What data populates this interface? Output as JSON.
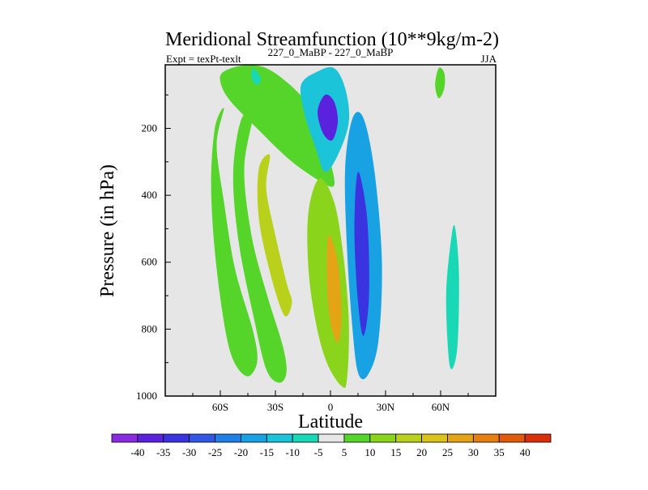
{
  "chart_data": {
    "type": "heatmap",
    "plot_style": "filled-contour",
    "title": "Meridional Streamfunction (10**9kg/m-2)",
    "subtitle_left": "Expt = texPt-texlt",
    "subtitle_center": "227_0_MaBP - 227_0_MaBP",
    "subtitle_right": "JJA",
    "xlabel": "Latitude",
    "ylabel": "Pressure (in hPa)",
    "xlim": [
      -90,
      90
    ],
    "ylim": [
      1000,
      10
    ],
    "x_ticks": [
      {
        "value": -60,
        "label": "60S"
      },
      {
        "value": -30,
        "label": "30S"
      },
      {
        "value": 0,
        "label": "0"
      },
      {
        "value": 30,
        "label": "30N"
      },
      {
        "value": 60,
        "label": "60N"
      }
    ],
    "y_ticks": [
      {
        "value": 200,
        "label": "200"
      },
      {
        "value": 400,
        "label": "400"
      },
      {
        "value": 600,
        "label": "600"
      },
      {
        "value": 800,
        "label": "800"
      },
      {
        "value": 1000,
        "label": "1000"
      }
    ],
    "background_color": "#e6e6e6",
    "colorbar": {
      "levels": [
        -40,
        -35,
        -30,
        -25,
        -20,
        -15,
        -10,
        -5,
        5,
        10,
        15,
        20,
        25,
        30,
        35,
        40
      ],
      "labels": [
        "-40",
        "-35",
        "-30",
        "-25",
        "-20",
        "-15",
        "-10",
        "-5",
        "5",
        "10",
        "15",
        "20",
        "25",
        "30",
        "35",
        "40"
      ],
      "colors": [
        "#8a2be2",
        "#5a22dc",
        "#3a33e0",
        "#2f57e4",
        "#1f7fe6",
        "#18a2e4",
        "#1cc4da",
        "#19d8b6",
        "#e6e6e6",
        "#55d42a",
        "#8bd41c",
        "#b9d11a",
        "#d9c31a",
        "#e3a516",
        "#e57f12",
        "#e25a0c",
        "#d9300a"
      ]
    },
    "contours": [
      {
        "name": "nh-outer-positive-upper",
        "value": 5,
        "points": [
          [
            -47,
            12
          ],
          [
            -58,
            30
          ],
          [
            -60,
            60
          ],
          [
            -55,
            115
          ],
          [
            -40,
            200
          ],
          [
            -22,
            295
          ],
          [
            -5,
            360
          ],
          [
            2,
            370
          ],
          [
            0,
            300
          ],
          [
            -5,
            200
          ],
          [
            -12,
            130
          ],
          [
            -22,
            70
          ],
          [
            -35,
            20
          ]
        ]
      },
      {
        "name": "sh-positive-lower",
        "value": 5,
        "points": [
          [
            -58,
            140
          ],
          [
            -62,
            250
          ],
          [
            -58,
            420
          ],
          [
            -52,
            620
          ],
          [
            -42,
            810
          ],
          [
            -40,
            900
          ],
          [
            -46,
            940
          ],
          [
            -55,
            860
          ],
          [
            -62,
            620
          ],
          [
            -65,
            380
          ],
          [
            -63,
            200
          ]
        ]
      },
      {
        "name": "sh-positive-middle",
        "value": 10,
        "points": [
          [
            -42,
            150
          ],
          [
            -47,
            320
          ],
          [
            -43,
            520
          ],
          [
            -35,
            690
          ],
          [
            -26,
            850
          ],
          [
            -24,
            930
          ],
          [
            -28,
            960
          ],
          [
            -35,
            920
          ],
          [
            -42,
            760
          ],
          [
            -50,
            540
          ],
          [
            -53,
            340
          ],
          [
            -49,
            180
          ]
        ]
      },
      {
        "name": "sh-positive-core",
        "value": 20,
        "points": [
          [
            -33,
            280
          ],
          [
            -35,
            380
          ],
          [
            -30,
            520
          ],
          [
            -24,
            660
          ],
          [
            -21,
            720
          ],
          [
            -25,
            760
          ],
          [
            -32,
            650
          ],
          [
            -39,
            470
          ],
          [
            -39,
            320
          ]
        ]
      },
      {
        "name": "equatorial-positive",
        "value": 15,
        "points": [
          [
            -6,
            350
          ],
          [
            -12,
            450
          ],
          [
            -12,
            620
          ],
          [
            -8,
            780
          ],
          [
            -2,
            900
          ],
          [
            6,
            970
          ],
          [
            9,
            950
          ],
          [
            10,
            780
          ],
          [
            7,
            580
          ],
          [
            2,
            420
          ]
        ]
      },
      {
        "name": "equatorial-core",
        "value": 30,
        "points": [
          [
            -1,
            520
          ],
          [
            -2,
            650
          ],
          [
            0,
            780
          ],
          [
            4,
            840
          ],
          [
            6,
            760
          ],
          [
            4,
            600
          ]
        ]
      },
      {
        "name": "upper-negative-cell",
        "value": -10,
        "points": [
          [
            -7,
            30
          ],
          [
            -16,
            70
          ],
          [
            -14,
            160
          ],
          [
            -8,
            260
          ],
          [
            -3,
            330
          ],
          [
            4,
            280
          ],
          [
            10,
            180
          ],
          [
            8,
            80
          ],
          [
            2,
            20
          ]
        ]
      },
      {
        "name": "upper-negative-core",
        "value": -35,
        "points": [
          [
            -3,
            100
          ],
          [
            -7,
            150
          ],
          [
            -4,
            215
          ],
          [
            1,
            235
          ],
          [
            4,
            180
          ],
          [
            2,
            120
          ]
        ]
      },
      {
        "name": "nh-negative-cell",
        "value": -15,
        "points": [
          [
            12,
            170
          ],
          [
            8,
            320
          ],
          [
            9,
            560
          ],
          [
            12,
            800
          ],
          [
            15,
            930
          ],
          [
            20,
            940
          ],
          [
            26,
            840
          ],
          [
            28,
            600
          ],
          [
            24,
            330
          ],
          [
            18,
            170
          ]
        ]
      },
      {
        "name": "nh-negative-core",
        "value": -30,
        "points": [
          [
            15,
            330
          ],
          [
            13,
            500
          ],
          [
            15,
            720
          ],
          [
            18,
            820
          ],
          [
            21,
            700
          ],
          [
            20,
            470
          ]
        ]
      },
      {
        "name": "north-positive-thin",
        "value": 5,
        "points": [
          [
            59,
            20
          ],
          [
            57,
            70
          ],
          [
            59,
            110
          ],
          [
            62,
            80
          ],
          [
            62,
            35
          ]
        ]
      },
      {
        "name": "north-negative-thin",
        "value": -5,
        "points": [
          [
            66,
            520
          ],
          [
            63,
            700
          ],
          [
            65,
            910
          ],
          [
            69,
            860
          ],
          [
            70,
            640
          ],
          [
            68,
            500
          ]
        ]
      },
      {
        "name": "upper-teal-blob",
        "value": -5,
        "points": [
          [
            -42,
            20
          ],
          [
            -43,
            50
          ],
          [
            -40,
            70
          ],
          [
            -38,
            50
          ]
        ]
      }
    ]
  }
}
